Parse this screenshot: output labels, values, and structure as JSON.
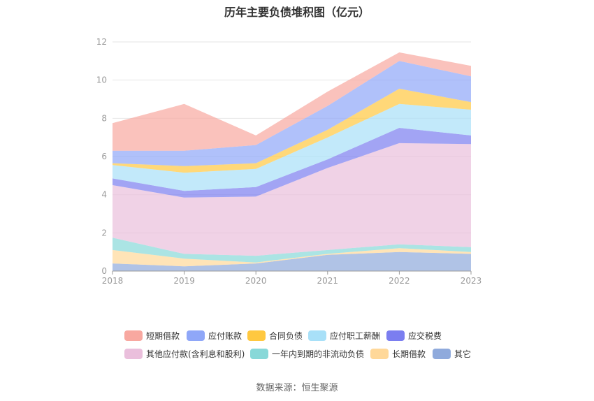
{
  "chart_data": {
    "type": "area",
    "stacked": true,
    "title": "历年主要负债堆积图（亿元）",
    "source": "数据来源：恒生聚源",
    "x": [
      "2018",
      "2019",
      "2020",
      "2021",
      "2022",
      "2023"
    ],
    "ylim": [
      0,
      12
    ],
    "yticks": [
      "0",
      "2",
      "4",
      "6",
      "8",
      "10",
      "12"
    ],
    "grid": true,
    "legend_position": "bottom",
    "series": [
      {
        "name": "其它",
        "color": "#8faadc",
        "values": [
          0.4,
          0.25,
          0.4,
          0.85,
          1.0,
          0.9
        ]
      },
      {
        "name": "长期借款",
        "color": "#ffd899",
        "values": [
          0.7,
          0.4,
          0.05,
          0.05,
          0.2,
          0.1
        ]
      },
      {
        "name": "一年内到期的非流动负债",
        "color": "#88d8d8",
        "values": [
          0.65,
          0.25,
          0.35,
          0.2,
          0.2,
          0.25
        ]
      },
      {
        "name": "其他应付款(含利息和股利)",
        "color": "#eabfdc",
        "values": [
          2.75,
          2.95,
          3.1,
          4.3,
          5.3,
          5.4
        ]
      },
      {
        "name": "应交税费",
        "color": "#7b7ef0",
        "values": [
          0.35,
          0.35,
          0.5,
          0.45,
          0.8,
          0.45
        ]
      },
      {
        "name": "应付职工薪酬",
        "color": "#a8e0f8",
        "values": [
          0.7,
          0.95,
          0.95,
          1.15,
          1.25,
          1.35
        ]
      },
      {
        "name": "合同负债",
        "color": "#ffc840",
        "values": [
          0.1,
          0.35,
          0.3,
          0.4,
          0.8,
          0.4
        ]
      },
      {
        "name": "应付账款",
        "color": "#8fa7f8",
        "values": [
          0.65,
          0.8,
          0.95,
          1.25,
          1.45,
          1.35
        ]
      },
      {
        "name": "短期借款",
        "color": "#f8a8a0",
        "values": [
          1.45,
          2.45,
          0.5,
          0.75,
          0.45,
          0.55
        ]
      }
    ],
    "legend_order": [
      "短期借款",
      "应付账款",
      "合同负债",
      "应付职工薪酬",
      "应交税费",
      "其他应付款(含利息和股利)",
      "一年内到期的非流动负债",
      "长期借款",
      "其它"
    ]
  }
}
